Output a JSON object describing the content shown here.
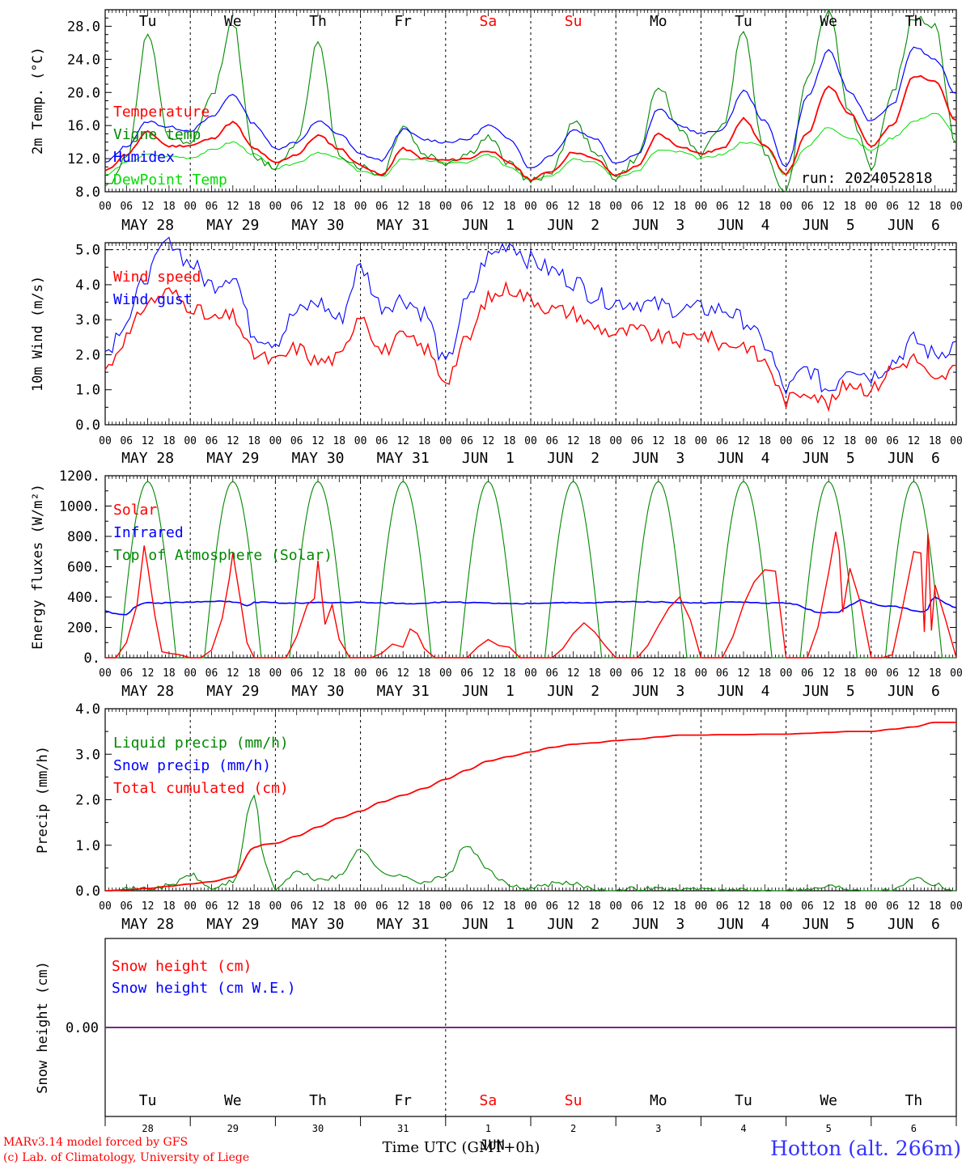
{
  "station": "Hotton (alt. 266m)",
  "credits": [
    "MARv3.14 model forced by GFS",
    "(c) Lab. of Climatology, University of Liege"
  ],
  "run_label": "run: 2024052818",
  "x_axis_title": "Time UTC (GMT+0h)",
  "hour_ticks": [
    "00",
    "06",
    "12",
    "18"
  ],
  "day_labels": [
    "MAY 28",
    "MAY 29",
    "MAY 30",
    "MAY 31",
    "JUN  1",
    "JUN  2",
    "JUN  3",
    "JUN  4",
    "JUN  5",
    "JUN  6"
  ],
  "weekday_labels": [
    "Tu",
    "We",
    "Th",
    "Fr",
    "Sa",
    "Su",
    "Mo",
    "Tu",
    "We",
    "Th"
  ],
  "day_numbers": [
    "28",
    "29",
    "30",
    "31",
    "1",
    "2",
    "3",
    "4",
    "5",
    "6"
  ],
  "month_label_bottom": "JUN",
  "colors": {
    "temperature": "#ff0000",
    "vigne": "#008800",
    "humidex": "#0000ff",
    "dewpoint": "#00dd00",
    "weekend": "#ff0000",
    "station": "#3333ff",
    "credits": "#ff0000"
  },
  "chart_data": [
    {
      "type": "line",
      "id": "temp",
      "ylabel": "2m Temp. (°C)",
      "ylim": [
        8,
        30
      ],
      "ytick_labels": [
        "8.0",
        "12.0",
        "16.0",
        "20.0",
        "24.0",
        "28.0"
      ],
      "legend": [
        "Temperature",
        "Vigne temp",
        "Humidex",
        "DewPoint Temp"
      ],
      "x_hours": [
        0,
        6,
        12,
        18,
        24,
        30,
        36,
        42,
        48,
        54,
        60,
        66,
        72,
        78,
        84,
        90,
        96,
        102,
        108,
        114,
        120,
        126,
        132,
        138,
        144,
        150,
        156,
        162,
        168,
        174,
        180,
        186,
        192,
        198,
        204,
        210,
        216,
        222,
        228,
        234,
        240
      ],
      "series": [
        {
          "name": "Temperature",
          "values": [
            10.5,
            12.5,
            15.2,
            13.5,
            13.6,
            14.4,
            16.4,
            13.2,
            11.5,
            12.5,
            14.8,
            13.2,
            11.2,
            10.0,
            13.2,
            12.0,
            11.8,
            12.0,
            13.0,
            11.5,
            9.5,
            10.5,
            12.8,
            12.0,
            10.0,
            11.0,
            15.0,
            13.5,
            12.6,
            13.2,
            16.8,
            13.5,
            10.2,
            15.0,
            20.8,
            17.5,
            13.5,
            16.0,
            22.0,
            21.5,
            16.5
          ]
        },
        {
          "name": "Vigne temp",
          "values": [
            8.5,
            12.0,
            27.0,
            14.5,
            13.5,
            19.5,
            28.5,
            12.0,
            11.0,
            14.0,
            26.0,
            12.5,
            11.0,
            10.0,
            16.0,
            12.5,
            11.5,
            12.5,
            14.5,
            11.5,
            9.2,
            10.5,
            16.5,
            13.0,
            9.6,
            12.0,
            21.0,
            15.5,
            12.5,
            16.0,
            27.5,
            12.5,
            8.0,
            22.0,
            30.0,
            17.5,
            11.0,
            20.0,
            29.0,
            28.0,
            13.5
          ]
        },
        {
          "name": "Humidex",
          "values": [
            11.5,
            13.5,
            16.5,
            15.8,
            15.4,
            17.0,
            19.8,
            16.2,
            13.2,
            14.0,
            16.5,
            15.0,
            12.5,
            11.8,
            15.5,
            14.3,
            14.0,
            14.3,
            16.0,
            14.5,
            10.8,
            12.5,
            15.5,
            14.5,
            11.5,
            12.5,
            18.0,
            16.0,
            15.0,
            15.5,
            20.2,
            16.5,
            11.0,
            19.5,
            25.0,
            20.0,
            16.5,
            18.5,
            25.5,
            24.0,
            19.8
          ]
        },
        {
          "name": "DewPoint Temp",
          "values": [
            10.0,
            11.5,
            12.5,
            12.3,
            12.1,
            13.0,
            14.0,
            12.5,
            10.8,
            11.5,
            12.8,
            12.0,
            10.5,
            9.8,
            12.0,
            11.8,
            11.5,
            11.5,
            12.5,
            11.0,
            9.5,
            10.0,
            12.0,
            11.5,
            9.8,
            10.5,
            13.0,
            12.8,
            12.0,
            12.5,
            14.0,
            13.5,
            10.0,
            13.5,
            15.8,
            14.5,
            13.0,
            14.5,
            16.5,
            17.5,
            15.0
          ]
        }
      ]
    },
    {
      "type": "line",
      "id": "wind",
      "ylabel": "10m Wind (m/s)",
      "ylim": [
        0,
        5.2
      ],
      "ytick_labels": [
        "0.0",
        "1.0",
        "2.0",
        "3.0",
        "4.0",
        "5.0"
      ],
      "legend": [
        "Wind speed",
        "Wind gust"
      ],
      "x_hours": [
        0,
        6,
        12,
        18,
        24,
        30,
        36,
        42,
        48,
        54,
        60,
        66,
        72,
        78,
        84,
        90,
        96,
        102,
        108,
        114,
        120,
        126,
        132,
        138,
        144,
        150,
        156,
        162,
        168,
        174,
        180,
        186,
        192,
        198,
        204,
        210,
        216,
        222,
        228,
        234,
        240
      ],
      "series": [
        {
          "name": "Wind speed",
          "values": [
            1.6,
            2.5,
            3.5,
            3.8,
            3.4,
            3.0,
            3.1,
            2.0,
            1.8,
            2.2,
            1.8,
            1.9,
            3.2,
            2.1,
            2.5,
            2.2,
            1.3,
            2.4,
            3.6,
            3.9,
            3.6,
            3.3,
            3.2,
            2.8,
            2.6,
            2.7,
            2.5,
            2.4,
            2.6,
            2.3,
            2.3,
            1.8,
            0.7,
            1.0,
            0.6,
            1.2,
            1.0,
            1.6,
            1.9,
            1.2,
            1.6
          ]
        },
        {
          "name": "Wind gust",
          "values": [
            2.1,
            3.0,
            4.3,
            5.3,
            4.6,
            4.0,
            4.3,
            2.6,
            2.4,
            3.2,
            3.5,
            3.0,
            4.5,
            3.4,
            3.6,
            3.2,
            1.7,
            3.5,
            4.8,
            5.2,
            4.7,
            4.4,
            4.1,
            3.7,
            3.5,
            3.5,
            3.4,
            3.3,
            3.3,
            3.3,
            3.0,
            2.3,
            1.0,
            1.6,
            1.0,
            1.7,
            1.4,
            1.8,
            2.4,
            2.0,
            2.3
          ]
        }
      ]
    },
    {
      "type": "line",
      "id": "energy",
      "ylabel": "Energy fluxes (W/m²)",
      "ylim": [
        0,
        1200
      ],
      "ytick_labels": [
        "0.",
        "200.",
        "400.",
        "600.",
        "800.",
        "1000.",
        "1200."
      ],
      "legend": [
        "Solar",
        "Infrared",
        "Top of Atmosphere (Solar)"
      ],
      "solar_x_hours": [
        0,
        3,
        6,
        9,
        11,
        12,
        14,
        16,
        18,
        21,
        24,
        27,
        30,
        33,
        35,
        36,
        38,
        40,
        42,
        45,
        48,
        51,
        54,
        57,
        59,
        60,
        62,
        64,
        66,
        69,
        72,
        75,
        78,
        81,
        84,
        86,
        88,
        90,
        93,
        96,
        99,
        102,
        105,
        108,
        111,
        114,
        117,
        120,
        123,
        126,
        129,
        132,
        135,
        138,
        141,
        144,
        147,
        150,
        153,
        156,
        159,
        162,
        165,
        168,
        171,
        174,
        177,
        180,
        183,
        186,
        189,
        192,
        195,
        198,
        201,
        204,
        206,
        207,
        208,
        210,
        213,
        216,
        219,
        222,
        225,
        228,
        230,
        231,
        232,
        233,
        234,
        237,
        240
      ],
      "series": [
        {
          "name": "Solar",
          "values": [
            0,
            0,
            100,
            350,
            740,
            600,
            280,
            40,
            30,
            20,
            0,
            0,
            50,
            260,
            520,
            690,
            400,
            100,
            0,
            0,
            0,
            0,
            140,
            350,
            390,
            640,
            220,
            350,
            120,
            0,
            0,
            0,
            30,
            90,
            70,
            190,
            160,
            60,
            0,
            0,
            0,
            0,
            70,
            120,
            80,
            70,
            0,
            0,
            0,
            0,
            60,
            160,
            230,
            170,
            80,
            0,
            0,
            0,
            80,
            210,
            330,
            400,
            250,
            0,
            0,
            0,
            140,
            350,
            500,
            580,
            570,
            0,
            0,
            0,
            200,
            560,
            830,
            700,
            300,
            590,
            360,
            0,
            0,
            20,
            350,
            700,
            690,
            170,
            820,
            180,
            480,
            250,
            0
          ]
        },
        {
          "name": "Infrared",
          "values": [
            310,
            290,
            285,
            340,
            360,
            362,
            360,
            360,
            365,
            368,
            365,
            368,
            370,
            372,
            371,
            368,
            360,
            340,
            365,
            365,
            362,
            358,
            360,
            362,
            364,
            363,
            364,
            362,
            365,
            364,
            365,
            362,
            360,
            360,
            358,
            356,
            358,
            360,
            365,
            365,
            368,
            364,
            362,
            360,
            358,
            356,
            355,
            358,
            360,
            362,
            364,
            362,
            360,
            362,
            365,
            368,
            370,
            370,
            370,
            368,
            366,
            364,
            362,
            360,
            362,
            365,
            368,
            366,
            362,
            360,
            362,
            360,
            350,
            320,
            300,
            298,
            296,
            300,
            320,
            345,
            380,
            360,
            340,
            342,
            330,
            310,
            305,
            308,
            320,
            380,
            400,
            360,
            330
          ]
        },
        {
          "name": "Top of Atmosphere (Solar)",
          "peak": 1160,
          "sunrise_hour": 4,
          "sunset_hour": 20
        }
      ]
    },
    {
      "type": "line",
      "id": "precip",
      "ylabel": "Precip (mm/h)",
      "ylim": [
        0,
        4
      ],
      "ytick_labels": [
        "0.0",
        "1.0",
        "2.0",
        "3.0",
        "4.0"
      ],
      "legend": [
        "Liquid precip (mm/h)",
        "Snow precip (mm/h)",
        "Total cumulated (cm)"
      ],
      "x_hours": [
        0,
        6,
        12,
        18,
        24,
        30,
        36,
        42,
        45,
        48,
        54,
        60,
        66,
        72,
        78,
        84,
        90,
        96,
        102,
        108,
        114,
        120,
        126,
        132,
        138,
        144,
        150,
        156,
        162,
        168,
        174,
        180,
        186,
        192,
        198,
        204,
        210,
        216,
        222,
        228,
        234,
        240
      ],
      "series": [
        {
          "name": "Liquid precip (mm/h)",
          "values": [
            0.02,
            0.03,
            0.05,
            0.1,
            0.35,
            0.05,
            0.2,
            2.1,
            0.6,
            0.05,
            0.4,
            0.25,
            0.3,
            0.95,
            0.4,
            0.3,
            0.2,
            0.3,
            1.0,
            0.45,
            0.1,
            0.05,
            0.15,
            0.15,
            0.05,
            0.0,
            0.05,
            0.05,
            0.0,
            0.05,
            0.0,
            0.0,
            0.0,
            0.0,
            0.02,
            0.1,
            0.05,
            0.0,
            0.0,
            0.3,
            0.15,
            0.0
          ]
        },
        {
          "name": "Snow precip (mm/h)",
          "values": [
            0,
            0,
            0,
            0,
            0,
            0,
            0,
            0,
            0,
            0,
            0,
            0,
            0,
            0,
            0,
            0,
            0,
            0,
            0,
            0,
            0,
            0,
            0,
            0,
            0,
            0,
            0,
            0,
            0,
            0,
            0,
            0,
            0,
            0,
            0,
            0,
            0,
            0,
            0,
            0,
            0,
            0
          ]
        },
        {
          "name": "Total cumulated (cm)",
          "values": [
            0.0,
            0.02,
            0.05,
            0.1,
            0.15,
            0.2,
            0.3,
            0.95,
            1.02,
            1.04,
            1.2,
            1.4,
            1.6,
            1.75,
            1.95,
            2.1,
            2.25,
            2.45,
            2.65,
            2.85,
            2.95,
            3.05,
            3.15,
            3.22,
            3.25,
            3.3,
            3.33,
            3.38,
            3.42,
            3.42,
            3.43,
            3.43,
            3.44,
            3.44,
            3.46,
            3.48,
            3.5,
            3.5,
            3.55,
            3.6,
            3.7,
            3.7
          ]
        }
      ]
    },
    {
      "type": "line",
      "id": "snow",
      "ylabel": "Snow height (cm)",
      "ytick_labels": [
        "0.00"
      ],
      "legend": [
        "Snow height (cm)",
        "Snow height (cm W.E.)"
      ],
      "series": [
        {
          "name": "Snow height (cm)",
          "values": [
            0,
            0
          ]
        },
        {
          "name": "Snow height (cm W.E.)",
          "values": [
            0,
            0
          ]
        }
      ]
    }
  ]
}
